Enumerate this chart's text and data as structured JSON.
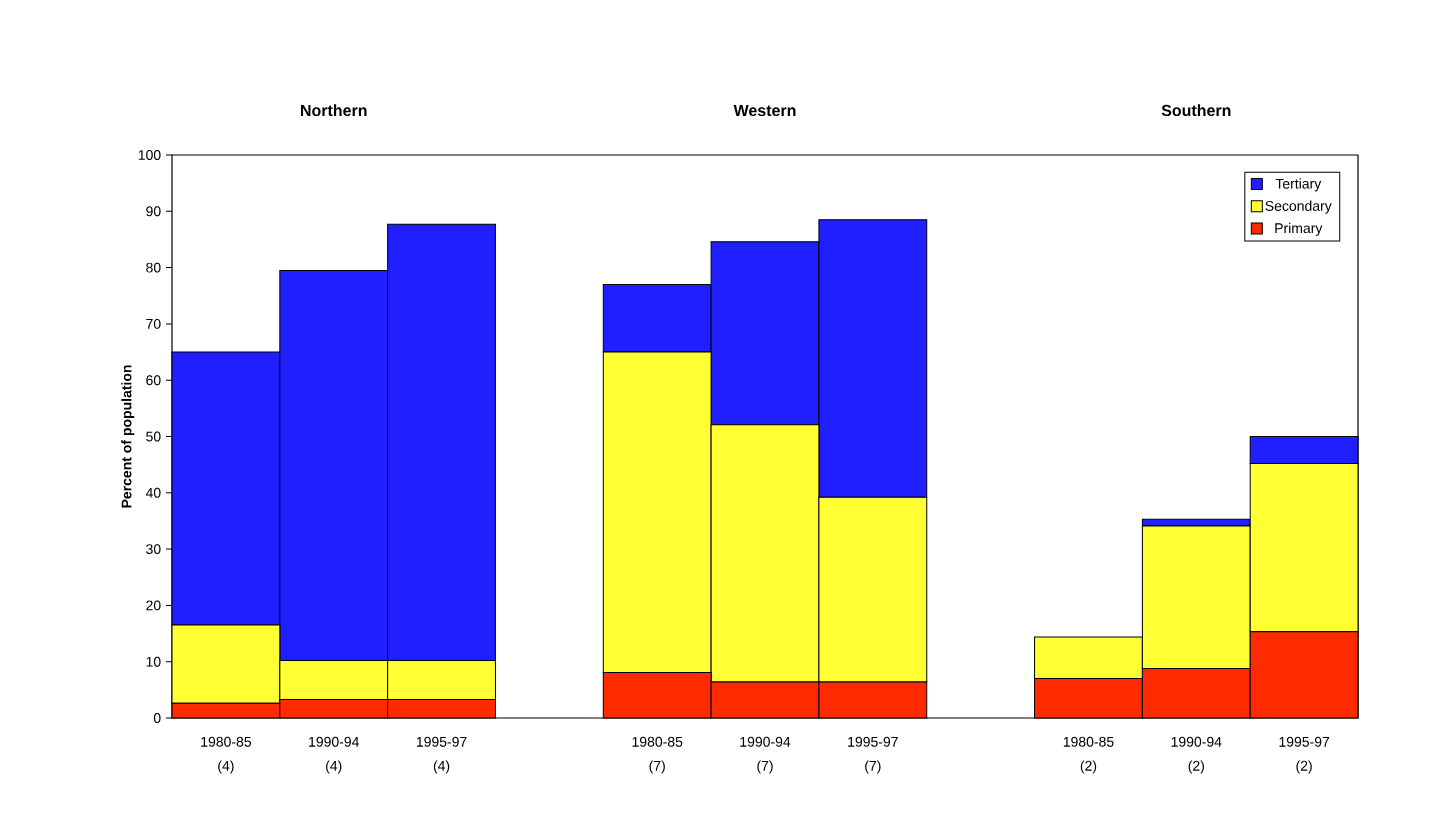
{
  "chart_data": {
    "type": "bar",
    "stacked": true,
    "ylabel": "Percent of population",
    "annotations": [
      "Northern",
      "Western",
      "Southern"
    ],
    "categories": [
      "1980-85 (4)",
      "1990-94 (4)",
      "1995-97 (4)",
      null,
      "1980-85 (7)",
      "1990-94 (7)",
      "1995-97 (7)",
      null,
      "1980-85 (2)",
      "1990-94 (2)",
      "1995-97 (2)"
    ],
    "series": [
      {
        "name": "Primary",
        "color": "#ff2a00",
        "values": [
          2.6,
          3.3,
          3.3,
          null,
          8.1,
          6.4,
          6.4,
          null,
          7.0,
          8.8,
          15.3
        ]
      },
      {
        "name": "Secondary",
        "color": "#ffff33",
        "values": [
          13.9,
          6.9,
          6.9,
          null,
          56.9,
          45.7,
          32.8,
          null,
          7.4,
          25.3,
          29.9
        ]
      },
      {
        "name": "Tertiary",
        "color": "#1f1fff",
        "values": [
          48.5,
          69.3,
          77.5,
          null,
          12.0,
          32.5,
          49.3,
          null,
          0,
          1.2,
          4.8
        ]
      }
    ],
    "ylim": [
      0,
      100
    ],
    "yticks": [
      0,
      10,
      20,
      30,
      40,
      50,
      60,
      70,
      80,
      90,
      100
    ],
    "legend": "top right"
  }
}
